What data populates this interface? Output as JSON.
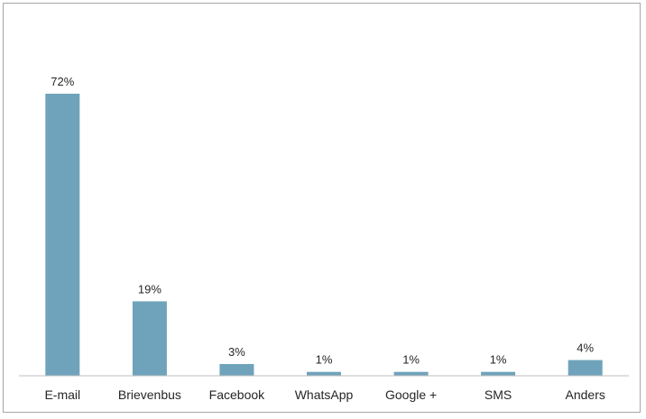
{
  "chart_data": {
    "type": "bar",
    "title": "",
    "xlabel": "",
    "ylabel": "",
    "categories": [
      "E-mail",
      "Brievenbus",
      "Facebook",
      "WhatsApp",
      "Google +",
      "SMS",
      "Anders"
    ],
    "values": [
      72,
      19,
      3,
      1,
      1,
      1,
      4
    ],
    "value_labels": [
      "72%",
      "19%",
      "3%",
      "1%",
      "1%",
      "1%",
      "4%"
    ],
    "ylim": [
      0,
      75
    ],
    "grid": false,
    "legend": "none",
    "colors": {
      "bar": "#6fa3bb",
      "axis": "#bfbfbf",
      "text": "#262626",
      "border": "#a6a6a6"
    }
  }
}
